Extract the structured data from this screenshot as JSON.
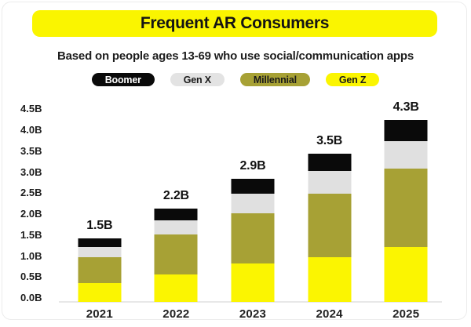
{
  "header": {
    "title": "Frequent AR Consumers"
  },
  "subtitle": "Based on people ages 13-69 who use social/communication apps",
  "colors": {
    "banner_yellow": "#FAF500",
    "boomer_black": "#0A0A0A",
    "genx_gray": "#E0E0E0",
    "millennial_olive": "#A7A135",
    "genz_yellow": "#FBF501",
    "axis_line": "#E8E8E8",
    "card_border": "#ECECEC"
  },
  "legend": [
    {
      "label": "Boomer",
      "bg": "#0A0A0A",
      "fg": "#FFFFFF"
    },
    {
      "label": "Gen X",
      "bg": "#E3E3E3",
      "fg": "#1A1A1A"
    },
    {
      "label": "Millennial",
      "bg": "#A7A135",
      "fg": "#1A1A1A"
    },
    {
      "label": "Gen Z",
      "bg": "#FBF501",
      "fg": "#1A1A1A"
    }
  ],
  "chart_data": {
    "type": "bar",
    "stacked": true,
    "title": "Frequent AR Consumers",
    "subtitle": "Based on people ages 13-69 who use social/communication apps",
    "categories": [
      "2021",
      "2022",
      "2023",
      "2024",
      "2025"
    ],
    "series": [
      {
        "name": "Gen Z",
        "color": "#FBF501",
        "values": [
          0.45,
          0.65,
          0.9,
          1.05,
          1.3
        ]
      },
      {
        "name": "Millennial",
        "color": "#A7A135",
        "values": [
          0.6,
          0.95,
          1.2,
          1.5,
          1.85
        ]
      },
      {
        "name": "Gen X",
        "color": "#E0E0E0",
        "values": [
          0.25,
          0.33,
          0.45,
          0.55,
          0.65
        ]
      },
      {
        "name": "Boomer",
        "color": "#0A0A0A",
        "values": [
          0.2,
          0.27,
          0.35,
          0.4,
          0.5
        ]
      }
    ],
    "totals": [
      "1.5B",
      "2.2B",
      "2.9B",
      "3.5B",
      "4.3B"
    ],
    "totals_values": [
      1.5,
      2.2,
      2.9,
      3.5,
      4.3
    ],
    "y_ticks": [
      "0.0B",
      "0.5B",
      "1.0B",
      "1.5B",
      "2.0B",
      "2.5B",
      "3.0B",
      "3.5B",
      "4.0B",
      "4.5B"
    ],
    "ylim": [
      0,
      4.5
    ],
    "grid": false,
    "legend_position": "top"
  }
}
